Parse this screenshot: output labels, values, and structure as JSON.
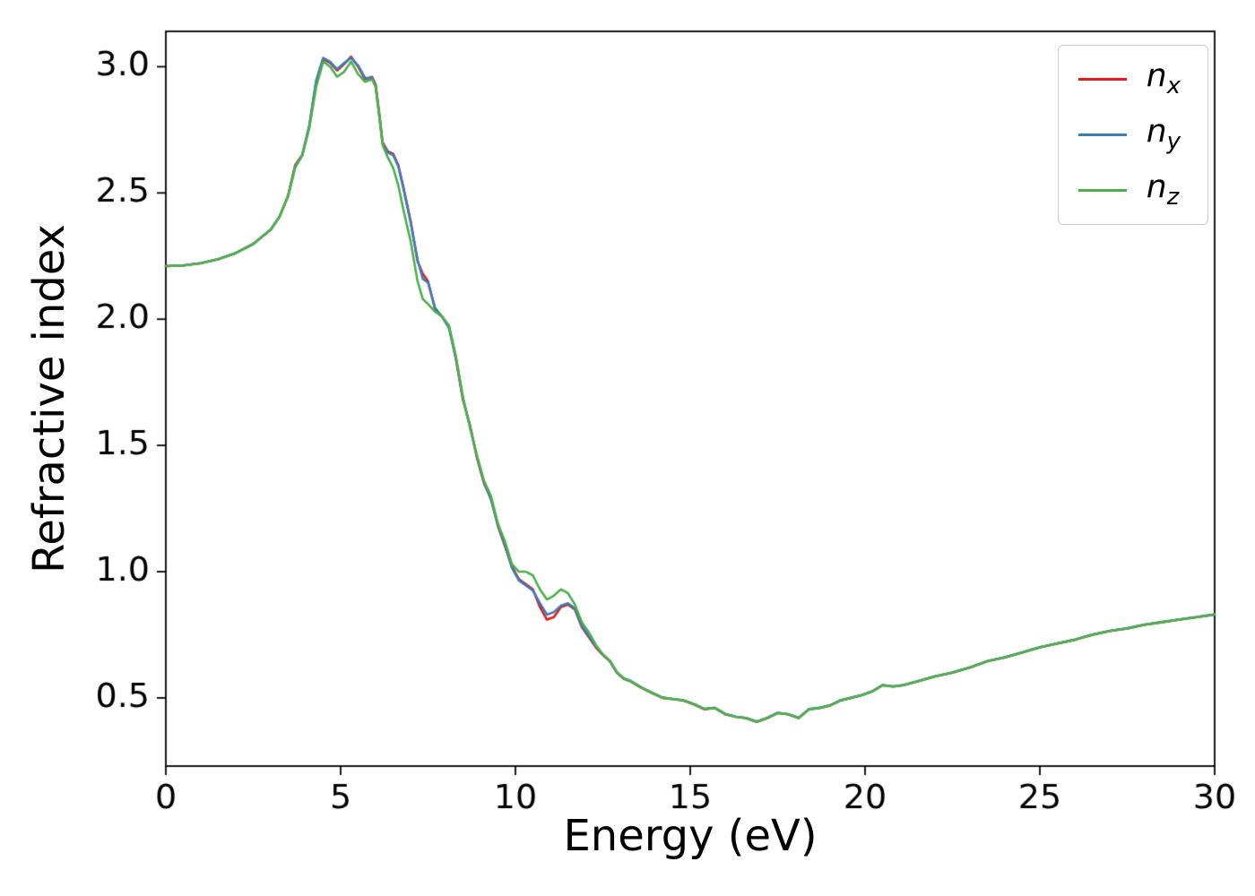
{
  "figure": {
    "background": "#ffffff"
  },
  "chart_data": {
    "type": "line",
    "title": "",
    "xlabel": "Energy (eV)",
    "ylabel": "Refractive index",
    "xlim": [
      0,
      30
    ],
    "ylim": [
      0.23,
      3.14
    ],
    "xticks": [
      0,
      5,
      10,
      15,
      20,
      25,
      30
    ],
    "yticks": [
      0.5,
      1.0,
      1.5,
      2.0,
      2.5,
      3.0
    ],
    "grid": false,
    "legend_position": "upper right",
    "x": [
      0,
      0.5,
      1,
      1.5,
      2,
      2.5,
      3,
      3.25,
      3.5,
      3.7,
      3.9,
      4.1,
      4.3,
      4.5,
      4.7,
      4.9,
      5.1,
      5.3,
      5.5,
      5.7,
      5.9,
      6.0,
      6.1,
      6.2,
      6.35,
      6.5,
      6.65,
      6.8,
      7.0,
      7.2,
      7.35,
      7.5,
      7.7,
      7.9,
      8.1,
      8.3,
      8.5,
      8.7,
      8.9,
      9.1,
      9.3,
      9.5,
      9.7,
      9.9,
      10.1,
      10.3,
      10.5,
      10.7,
      10.9,
      11.1,
      11.3,
      11.5,
      11.7,
      11.9,
      12.1,
      12.3,
      12.5,
      12.7,
      12.9,
      13.1,
      13.3,
      13.6,
      13.9,
      14.2,
      14.5,
      14.8,
      15.1,
      15.4,
      15.7,
      16.0,
      16.3,
      16.6,
      16.9,
      17.2,
      17.5,
      17.8,
      18.1,
      18.4,
      18.7,
      19.0,
      19.3,
      19.6,
      19.9,
      20.2,
      20.5,
      20.8,
      21.1,
      21.5,
      22.0,
      22.5,
      23.0,
      23.5,
      24.0,
      24.5,
      25.0,
      25.5,
      26.0,
      26.5,
      27.0,
      27.5,
      28.0,
      28.5,
      29.0,
      29.5,
      30.0
    ],
    "series": [
      {
        "name": "n_x",
        "label_main": "n",
        "label_sub": "x",
        "color": "#e41a1c",
        "values": [
          2.21,
          2.213,
          2.222,
          2.238,
          2.262,
          2.298,
          2.355,
          2.405,
          2.49,
          2.61,
          2.65,
          2.76,
          2.94,
          3.03,
          3.015,
          2.985,
          3.01,
          3.04,
          3.0,
          2.95,
          2.96,
          2.93,
          2.82,
          2.7,
          2.665,
          2.655,
          2.61,
          2.52,
          2.39,
          2.23,
          2.18,
          2.15,
          2.04,
          2.01,
          1.97,
          1.84,
          1.68,
          1.58,
          1.45,
          1.35,
          1.29,
          1.18,
          1.1,
          1.02,
          0.97,
          0.95,
          0.93,
          0.86,
          0.81,
          0.82,
          0.86,
          0.87,
          0.85,
          0.78,
          0.74,
          0.7,
          0.67,
          0.645,
          0.6,
          0.575,
          0.565,
          0.54,
          0.52,
          0.5,
          0.495,
          0.49,
          0.475,
          0.455,
          0.46,
          0.435,
          0.425,
          0.42,
          0.405,
          0.42,
          0.44,
          0.435,
          0.42,
          0.455,
          0.46,
          0.47,
          0.49,
          0.5,
          0.51,
          0.525,
          0.55,
          0.545,
          0.55,
          0.565,
          0.585,
          0.6,
          0.62,
          0.645,
          0.66,
          0.68,
          0.7,
          0.715,
          0.73,
          0.75,
          0.765,
          0.775,
          0.79,
          0.8,
          0.81,
          0.82,
          0.83
        ]
      },
      {
        "name": "n_y",
        "label_main": "n",
        "label_sub": "y",
        "color": "#377eb8",
        "values": [
          2.21,
          2.213,
          2.222,
          2.238,
          2.262,
          2.298,
          2.355,
          2.405,
          2.49,
          2.605,
          2.65,
          2.765,
          2.945,
          3.035,
          3.02,
          2.99,
          3.015,
          3.035,
          3.005,
          2.955,
          2.955,
          2.925,
          2.815,
          2.695,
          2.66,
          2.65,
          2.605,
          2.515,
          2.385,
          2.235,
          2.16,
          2.145,
          2.045,
          2.01,
          1.965,
          1.845,
          1.685,
          1.575,
          1.455,
          1.355,
          1.285,
          1.185,
          1.105,
          1.015,
          0.965,
          0.945,
          0.925,
          0.875,
          0.83,
          0.84,
          0.865,
          0.875,
          0.855,
          0.785,
          0.745,
          0.705,
          0.672,
          0.648,
          0.602,
          0.578,
          0.567,
          0.542,
          0.521,
          0.502,
          0.496,
          0.491,
          0.476,
          0.457,
          0.461,
          0.437,
          0.426,
          0.421,
          0.407,
          0.421,
          0.441,
          0.436,
          0.422,
          0.456,
          0.461,
          0.471,
          0.491,
          0.501,
          0.511,
          0.526,
          0.551,
          0.546,
          0.551,
          0.566,
          0.586,
          0.601,
          0.621,
          0.646,
          0.661,
          0.681,
          0.701,
          0.716,
          0.731,
          0.751,
          0.766,
          0.776,
          0.791,
          0.801,
          0.811,
          0.821,
          0.831
        ]
      },
      {
        "name": "n_z",
        "label_main": "n",
        "label_sub": "z",
        "color": "#4daf4a",
        "values": [
          2.21,
          2.213,
          2.222,
          2.238,
          2.262,
          2.298,
          2.355,
          2.405,
          2.49,
          2.6,
          2.648,
          2.755,
          2.92,
          3.02,
          3.0,
          2.96,
          2.98,
          3.02,
          2.97,
          2.94,
          2.95,
          2.92,
          2.81,
          2.69,
          2.64,
          2.6,
          2.53,
          2.43,
          2.31,
          2.15,
          2.08,
          2.06,
          2.03,
          2.01,
          1.975,
          1.85,
          1.69,
          1.57,
          1.46,
          1.36,
          1.3,
          1.19,
          1.12,
          1.03,
          1.0,
          1.0,
          0.985,
          0.93,
          0.89,
          0.905,
          0.93,
          0.915,
          0.87,
          0.8,
          0.76,
          0.71,
          0.672,
          0.646,
          0.601,
          0.576,
          0.566,
          0.541,
          0.52,
          0.501,
          0.495,
          0.49,
          0.475,
          0.456,
          0.46,
          0.436,
          0.425,
          0.42,
          0.406,
          0.42,
          0.44,
          0.435,
          0.421,
          0.455,
          0.46,
          0.47,
          0.49,
          0.5,
          0.51,
          0.525,
          0.55,
          0.545,
          0.55,
          0.565,
          0.585,
          0.6,
          0.62,
          0.645,
          0.66,
          0.68,
          0.7,
          0.715,
          0.73,
          0.75,
          0.765,
          0.775,
          0.79,
          0.8,
          0.81,
          0.82,
          0.83
        ]
      }
    ]
  }
}
